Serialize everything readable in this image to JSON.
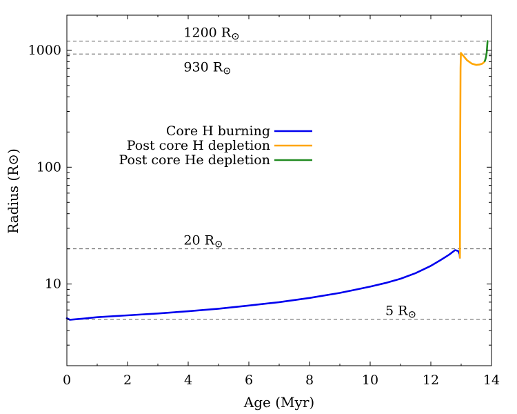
{
  "chart_data": {
    "type": "line",
    "xlabel": "Age (Myr)",
    "ylabel": "Radius (R⊙)",
    "xlim": [
      0,
      14
    ],
    "ylim": [
      2,
      2000
    ],
    "yscale": "log",
    "x_ticks": [
      0,
      2,
      4,
      6,
      8,
      10,
      12,
      14
    ],
    "y_ticks": [
      10,
      100,
      1000
    ],
    "grid": false,
    "legend_position": "middle-left",
    "series": [
      {
        "name": "Core H burning",
        "color": "#0000ee",
        "x": [
          0,
          0.1,
          0.5,
          1,
          2,
          3,
          4,
          5,
          6,
          7,
          8,
          9,
          10,
          10.5,
          11,
          11.5,
          12,
          12.3,
          12.6,
          12.8,
          12.9,
          12.95,
          12.96
        ],
        "y": [
          5.1,
          4.95,
          5.05,
          5.2,
          5.4,
          5.6,
          5.85,
          6.15,
          6.55,
          7.0,
          7.6,
          8.4,
          9.5,
          10.2,
          11.1,
          12.4,
          14.3,
          15.9,
          17.8,
          19.5,
          19.2,
          18.0,
          16.8
        ]
      },
      {
        "name": "Post core H depletion",
        "color": "#ffa500",
        "x": [
          12.96,
          12.97,
          12.98,
          12.99,
          13.02,
          13.1,
          13.2,
          13.35,
          13.5,
          13.6,
          13.7,
          13.75,
          13.78
        ],
        "y": [
          16.8,
          200,
          700,
          950,
          930,
          880,
          820,
          770,
          750,
          755,
          770,
          790,
          810
        ]
      },
      {
        "name": "Post core He depletion",
        "color": "#228b22",
        "x": [
          13.78,
          13.8,
          13.82,
          13.84,
          13.85,
          13.86,
          13.87
        ],
        "y": [
          810,
          840,
          880,
          950,
          1020,
          1100,
          1200
        ]
      }
    ],
    "reference_lines": [
      {
        "value": 1200,
        "label": "1200 R",
        "label_x": 3.85,
        "label_pos": "above"
      },
      {
        "value": 930,
        "label": "930 R",
        "label_x": 3.85,
        "label_pos": "below"
      },
      {
        "value": 20,
        "label": "20 R",
        "label_x": 3.85,
        "label_pos": "above"
      },
      {
        "value": 5,
        "label": "5 R",
        "label_x": 10.5,
        "label_pos": "above"
      }
    ],
    "sun_symbol": "⊙"
  }
}
